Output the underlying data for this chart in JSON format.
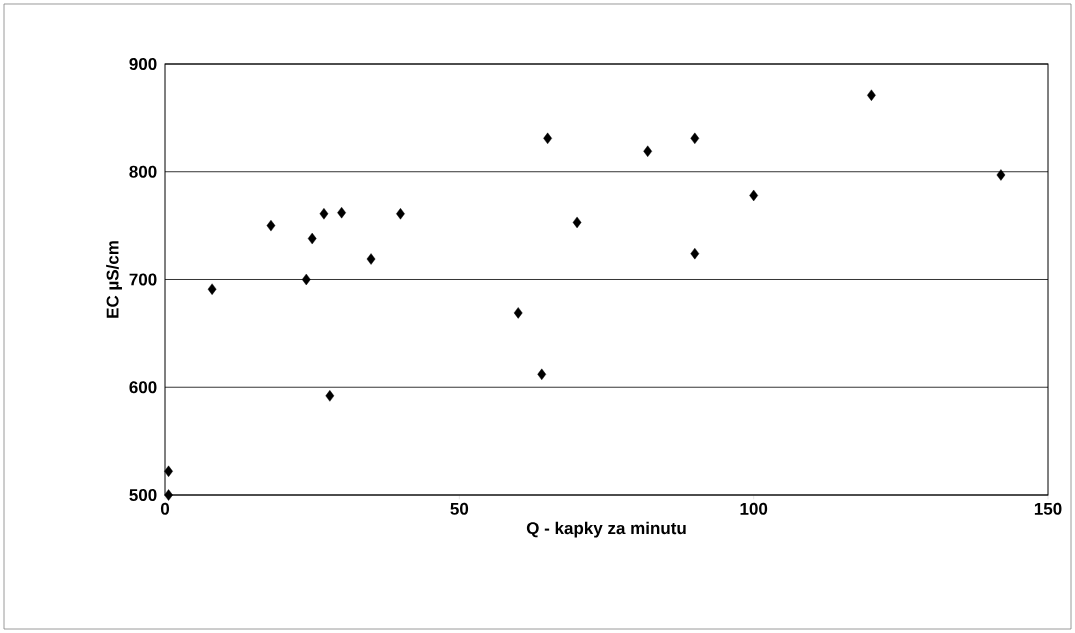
{
  "chart_data": {
    "type": "scatter",
    "xlabel": "Q - kapky za minutu",
    "ylabel": "EC µS/cm",
    "x": [
      0.6,
      0.6,
      8,
      18,
      25,
      24,
      27,
      30,
      28,
      35,
      40,
      60,
      64,
      65,
      70,
      82,
      90,
      90,
      100,
      120,
      142
    ],
    "values": [
      522,
      500,
      691,
      750,
      738,
      700,
      761,
      762,
      592,
      719,
      761,
      669,
      612,
      831,
      753,
      819,
      831,
      724,
      778,
      871,
      797
    ],
    "color": "#000000",
    "marker": "diamond",
    "xlim": [
      0,
      150
    ],
    "ylim": [
      500,
      900
    ],
    "xticks": [
      0,
      50,
      100,
      150
    ],
    "yticks": [
      500,
      600,
      700,
      800,
      900
    ],
    "grid": "y"
  }
}
